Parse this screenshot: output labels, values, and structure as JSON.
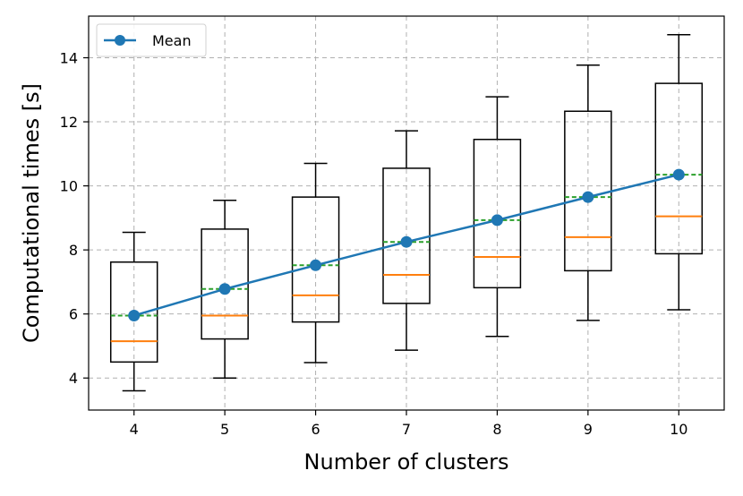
{
  "chart_data": {
    "type": "box",
    "xlabel": "Number of clusters",
    "ylabel": "Computational times [s]",
    "ylim": [
      3,
      15.3
    ],
    "xlim": [
      3.5,
      10.5
    ],
    "yticks": [
      4,
      6,
      8,
      10,
      12,
      14
    ],
    "grid": true,
    "legend": {
      "placement": "top-left",
      "entries": [
        "Mean"
      ]
    },
    "categories": [
      4,
      5,
      6,
      7,
      8,
      9,
      10
    ],
    "boxes": [
      {
        "x": 4,
        "whisker_low": 3.6,
        "q1": 4.5,
        "median": 5.15,
        "mean": 5.95,
        "q3": 7.62,
        "whisker_high": 8.55
      },
      {
        "x": 5,
        "whisker_low": 4.0,
        "q1": 5.22,
        "median": 5.95,
        "mean": 6.78,
        "q3": 8.65,
        "whisker_high": 9.55
      },
      {
        "x": 6,
        "whisker_low": 4.48,
        "q1": 5.75,
        "median": 6.58,
        "mean": 7.52,
        "q3": 9.65,
        "whisker_high": 10.7
      },
      {
        "x": 7,
        "whisker_low": 4.87,
        "q1": 6.33,
        "median": 7.22,
        "mean": 8.25,
        "q3": 10.55,
        "whisker_high": 11.72
      },
      {
        "x": 8,
        "whisker_low": 5.3,
        "q1": 6.82,
        "median": 7.78,
        "mean": 8.93,
        "q3": 11.45,
        "whisker_high": 12.78
      },
      {
        "x": 9,
        "whisker_low": 5.8,
        "q1": 7.35,
        "median": 8.4,
        "mean": 9.65,
        "q3": 12.33,
        "whisker_high": 13.77
      },
      {
        "x": 10,
        "whisker_low": 6.13,
        "q1": 7.88,
        "median": 9.05,
        "mean": 10.35,
        "q3": 13.2,
        "whisker_high": 14.72
      }
    ],
    "series": [
      {
        "name": "Mean",
        "x": [
          4,
          5,
          6,
          7,
          8,
          9,
          10
        ],
        "values": [
          5.95,
          6.78,
          7.52,
          8.25,
          8.93,
          9.65,
          10.35
        ]
      }
    ],
    "colors": {
      "mean_line": "#1f77b4",
      "median": "#ff7f0e",
      "mean_dash": "#2ca02c",
      "box": "#000000",
      "grid": "#b0b0b0"
    }
  }
}
